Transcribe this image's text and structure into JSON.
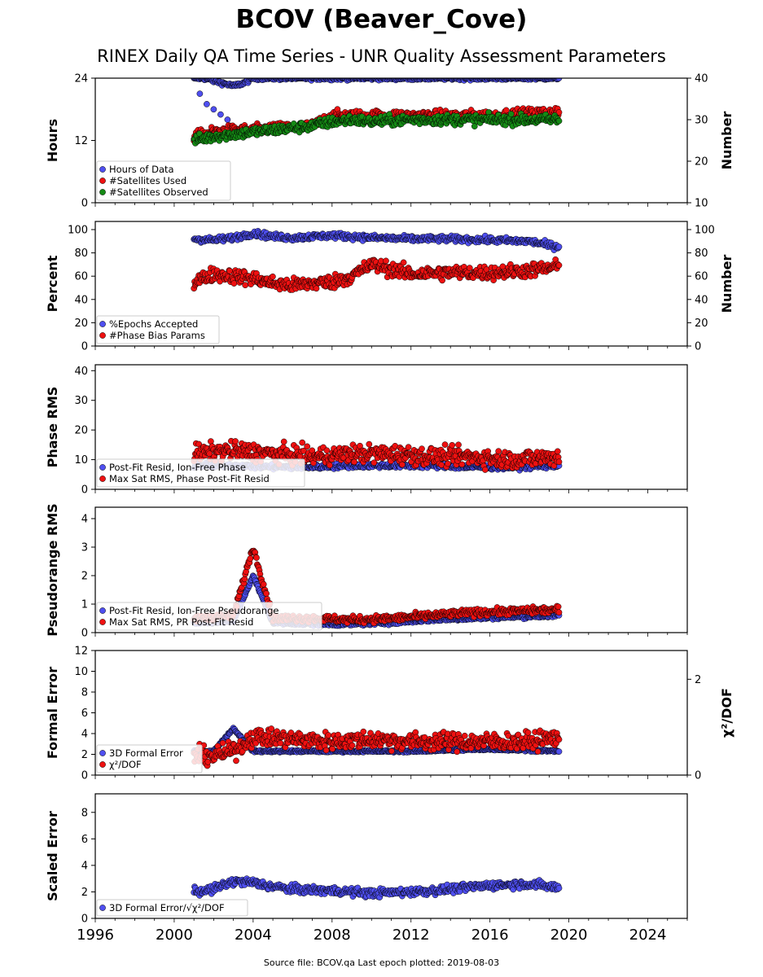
{
  "header": {
    "title": "BCOV (Beaver_Cove)",
    "subtitle": "RINEX Daily QA Time Series - UNR Quality Assessment Parameters"
  },
  "footer": {
    "text": "Source file: BCOV.qa Last epoch plotted: 2019-08-03"
  },
  "colors": {
    "blue": "#4f4ff0",
    "red": "#ee1111",
    "green": "#158a15",
    "marker_edge": "#000000"
  },
  "chart_data": [
    {
      "type": "scatter",
      "ylabel": "Hours",
      "ylabel_right": "Number",
      "ylim": [
        0,
        24
      ],
      "yticks": [
        0,
        12,
        24
      ],
      "ylim_right": [
        10,
        40
      ],
      "yticks_right": [
        10,
        20,
        30,
        40
      ],
      "legend_position": "lower-left",
      "series": [
        {
          "name": "Hours of Data",
          "color": "blue",
          "axis": "left",
          "x": [
            2001.0,
            2001.5,
            2002.0,
            2002.5,
            2003.0,
            2003.5,
            2004.0,
            2005.0,
            2006.0,
            2008.0,
            2010.0,
            2012.0,
            2014.0,
            2016.0,
            2018.0,
            2019.5
          ],
          "y": [
            24,
            24,
            23.5,
            23,
            22.5,
            23,
            24,
            24,
            24,
            24,
            24,
            24,
            24,
            24,
            24,
            24
          ],
          "scatter_values": [
            21,
            19,
            18,
            17,
            16,
            14,
            13
          ]
        },
        {
          "name": "#Satellites Used",
          "color": "red",
          "axis": "right",
          "x": [
            2001.0,
            2002.0,
            2003.0,
            2004.0,
            2005.0,
            2006.0,
            2007.0,
            2008.0,
            2009.0,
            2010.0,
            2012.0,
            2014.0,
            2016.0,
            2018.0,
            2019.5
          ],
          "y": [
            26,
            27,
            27.5,
            27.5,
            28,
            28,
            28.5,
            31,
            31,
            31,
            31,
            31,
            31,
            31.5,
            32
          ]
        },
        {
          "name": "#Satellites Observed",
          "color": "green",
          "axis": "right",
          "x": [
            2001.0,
            2002.0,
            2003.0,
            2004.0,
            2005.0,
            2006.0,
            2007.0,
            2008.0,
            2009.0,
            2010.0,
            2012.0,
            2014.0,
            2016.0,
            2018.0,
            2019.5
          ],
          "y": [
            25,
            26,
            26.5,
            27,
            27.5,
            28,
            28.5,
            29.5,
            30,
            29.5,
            30,
            30,
            30,
            30,
            30
          ]
        }
      ]
    },
    {
      "type": "scatter",
      "ylabel": "Percent",
      "ylabel_right": "Number",
      "ylim": [
        0,
        107
      ],
      "yticks": [
        0,
        20,
        40,
        60,
        80,
        100
      ],
      "ylim_right": [
        0,
        107
      ],
      "yticks_right": [
        0,
        20,
        40,
        60,
        80,
        100
      ],
      "legend_position": "lower-left",
      "series": [
        {
          "name": "%Epochs Accepted",
          "color": "blue",
          "axis": "left",
          "x": [
            2001.0,
            2002.0,
            2003.0,
            2004.0,
            2005.0,
            2006.0,
            2008.0,
            2010.0,
            2012.0,
            2014.0,
            2016.0,
            2018.0,
            2019.5
          ],
          "y": [
            92,
            91,
            93,
            97,
            94,
            93,
            95,
            93,
            92,
            92,
            91,
            90,
            85
          ]
        },
        {
          "name": "#Phase Bias Params",
          "color": "red",
          "axis": "right",
          "x": [
            2001.0,
            2002.0,
            2003.0,
            2004.0,
            2005.0,
            2006.0,
            2007.0,
            2008.0,
            2009.0,
            2010.0,
            2012.0,
            2014.0,
            2016.0,
            2018.0,
            2019.5
          ],
          "y": [
            55,
            62,
            60,
            58,
            54,
            52,
            54,
            55,
            60,
            70,
            62,
            63,
            63,
            65,
            68
          ]
        }
      ]
    },
    {
      "type": "scatter",
      "ylabel": "Phase RMS",
      "ylim": [
        0,
        42
      ],
      "yticks": [
        0,
        10,
        20,
        30,
        40
      ],
      "legend_position": "lower-left",
      "series": [
        {
          "name": "Post-Fit Resid, Ion-Free Phase",
          "color": "blue",
          "x": [
            2001.0,
            2003.0,
            2005.0,
            2007.0,
            2009.0,
            2011.0,
            2013.0,
            2015.0,
            2017.0,
            2019.5
          ],
          "y": [
            8,
            8,
            7.5,
            7.5,
            8,
            8,
            8,
            7.5,
            7.5,
            8
          ]
        },
        {
          "name": "Max Sat RMS, Phase Post-Fit Resid",
          "color": "red",
          "x": [
            2001.0,
            2003.0,
            2005.0,
            2007.0,
            2009.0,
            2011.0,
            2013.0,
            2015.0,
            2017.0,
            2019.5
          ],
          "y": [
            12,
            13,
            12,
            11,
            12,
            12,
            11,
            11,
            10,
            11
          ]
        }
      ]
    },
    {
      "type": "scatter",
      "ylabel": "Pseudorange RMS",
      "ylim": [
        0,
        4.4
      ],
      "yticks": [
        0,
        1,
        2,
        3,
        4
      ],
      "legend_position": "lower-left",
      "series": [
        {
          "name": "Post-Fit Resid, Ion-Free Pseudorange",
          "color": "blue",
          "x": [
            2001.0,
            2003.0,
            2004.0,
            2005.0,
            2007.0,
            2009.0,
            2011.0,
            2013.0,
            2015.0,
            2017.0,
            2019.5
          ],
          "y": [
            0.35,
            0.4,
            2.0,
            0.35,
            0.3,
            0.3,
            0.35,
            0.45,
            0.5,
            0.55,
            0.6
          ]
        },
        {
          "name": "Max Sat RMS, PR Post-Fit Resid",
          "color": "red",
          "x": [
            2001.0,
            2003.0,
            2004.0,
            2005.0,
            2007.0,
            2009.0,
            2011.0,
            2013.0,
            2015.0,
            2017.0,
            2019.5
          ],
          "y": [
            0.5,
            0.6,
            3.0,
            0.5,
            0.5,
            0.45,
            0.5,
            0.6,
            0.7,
            0.75,
            0.8
          ]
        }
      ]
    },
    {
      "type": "scatter",
      "ylabel": "Formal Error",
      "ylabel_right": "χ²/DOF",
      "ylim": [
        0,
        12
      ],
      "yticks": [
        0,
        2,
        4,
        6,
        8,
        10,
        12
      ],
      "ylim_right": [
        0,
        2.6
      ],
      "yticks_right": [
        0,
        2
      ],
      "legend_position": "lower-left",
      "series": [
        {
          "name": "3D Formal Error",
          "color": "blue",
          "axis": "left",
          "x": [
            2001.0,
            2002.0,
            2003.0,
            2004.0,
            2006.0,
            2008.0,
            2010.0,
            2012.0,
            2014.0,
            2016.0,
            2018.0,
            2019.5
          ],
          "y": [
            2.3,
            2.3,
            4.5,
            2.3,
            2.3,
            2.3,
            2.3,
            2.3,
            2.4,
            2.5,
            2.4,
            2.3
          ]
        },
        {
          "name": "χ²/DOF",
          "color": "red",
          "axis": "right",
          "x": [
            2001.0,
            2002.0,
            2003.0,
            2004.0,
            2006.0,
            2008.0,
            2010.0,
            2012.0,
            2014.0,
            2016.0,
            2018.0,
            2019.5
          ],
          "y": [
            0.4,
            0.4,
            0.5,
            0.8,
            0.75,
            0.7,
            0.75,
            0.7,
            0.7,
            0.7,
            0.7,
            0.8
          ]
        }
      ]
    },
    {
      "type": "scatter",
      "ylabel": "Scaled Error",
      "ylim": [
        0,
        9.4
      ],
      "yticks": [
        0,
        2,
        4,
        6,
        8
      ],
      "legend_position": "lower-left",
      "legend_label": "3D Formal Error/√χ²/DOF",
      "series": [
        {
          "name": "3D Formal Error/√χ²/DOF",
          "color": "blue",
          "x": [
            2001.0,
            2002.0,
            2003.0,
            2004.0,
            2005.0,
            2006.0,
            2008.0,
            2010.0,
            2012.0,
            2014.0,
            2016.0,
            2018.0,
            2019.5
          ],
          "y": [
            2.0,
            2.2,
            2.8,
            2.7,
            2.4,
            2.2,
            2.1,
            1.9,
            2.0,
            2.2,
            2.5,
            2.6,
            2.3
          ]
        }
      ]
    }
  ],
  "x_axis": {
    "xlim": [
      1996,
      2026
    ],
    "ticks": [
      "1996",
      "2000",
      "2004",
      "2008",
      "2012",
      "2016",
      "2020",
      "2024"
    ],
    "tick_values": [
      1996,
      2000,
      2004,
      2008,
      2012,
      2016,
      2020,
      2024
    ]
  }
}
